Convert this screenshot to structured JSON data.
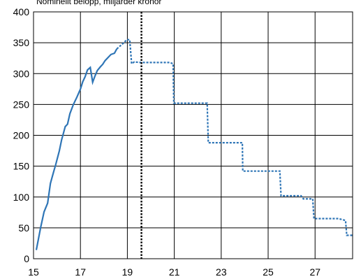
{
  "chart_data": {
    "type": "line",
    "title": "Nominellt belopp, miljarder kronor",
    "xlim": [
      15,
      28.6
    ],
    "ylim": [
      0,
      400
    ],
    "x_ticks": [
      15,
      17,
      19,
      21,
      23,
      25,
      27
    ],
    "x_tick_labels": [
      "15",
      "17",
      "19",
      "21",
      "23",
      "25",
      "27"
    ],
    "y_ticks": [
      0,
      50,
      100,
      150,
      200,
      250,
      300,
      350,
      400
    ],
    "y_tick_labels": [
      "0",
      "50",
      "100",
      "150",
      "200",
      "250",
      "300",
      "350",
      "400"
    ],
    "grid": true,
    "series_color": "#2e75b6",
    "divider": {
      "x": 19.6,
      "color": "#000000",
      "style": "dotted"
    },
    "series": [
      {
        "style": "solid",
        "points": [
          [
            15.12,
            14
          ],
          [
            15.3,
            50
          ],
          [
            15.45,
            76
          ],
          [
            15.6,
            90
          ],
          [
            15.72,
            122
          ],
          [
            15.85,
            140
          ],
          [
            15.95,
            153
          ],
          [
            16.1,
            175
          ],
          [
            16.2,
            193
          ],
          [
            16.28,
            204
          ],
          [
            16.35,
            214
          ],
          [
            16.45,
            218
          ],
          [
            16.55,
            235
          ],
          [
            16.7,
            250
          ],
          [
            16.85,
            262
          ],
          [
            17.0,
            275
          ],
          [
            17.1,
            287
          ],
          [
            17.2,
            295
          ],
          [
            17.3,
            306
          ],
          [
            17.42,
            310
          ],
          [
            17.52,
            286
          ],
          [
            17.62,
            296
          ],
          [
            17.72,
            305
          ],
          [
            17.85,
            311
          ],
          [
            17.95,
            315
          ],
          [
            18.05,
            321
          ],
          [
            18.15,
            325
          ],
          [
            18.3,
            331
          ],
          [
            18.45,
            333
          ],
          [
            18.55,
            340
          ]
        ]
      },
      {
        "style": "dotted",
        "points": [
          [
            18.55,
            340
          ],
          [
            18.7,
            345
          ],
          [
            18.85,
            350
          ],
          [
            18.98,
            355
          ],
          [
            19.1,
            355
          ],
          [
            19.18,
            316
          ],
          [
            19.3,
            319
          ],
          [
            19.55,
            318
          ],
          [
            20.2,
            318
          ],
          [
            20.6,
            318
          ],
          [
            20.8,
            318
          ],
          [
            20.95,
            316
          ],
          [
            20.98,
            252
          ],
          [
            22.4,
            252
          ],
          [
            22.45,
            188
          ],
          [
            23.9,
            188
          ],
          [
            23.92,
            142
          ],
          [
            25.5,
            142
          ],
          [
            25.55,
            102
          ],
          [
            26.4,
            102
          ],
          [
            26.5,
            97
          ],
          [
            26.9,
            97
          ],
          [
            26.95,
            65
          ],
          [
            28.0,
            65
          ],
          [
            28.3,
            62
          ],
          [
            28.35,
            38
          ],
          [
            28.6,
            38
          ]
        ]
      }
    ]
  }
}
